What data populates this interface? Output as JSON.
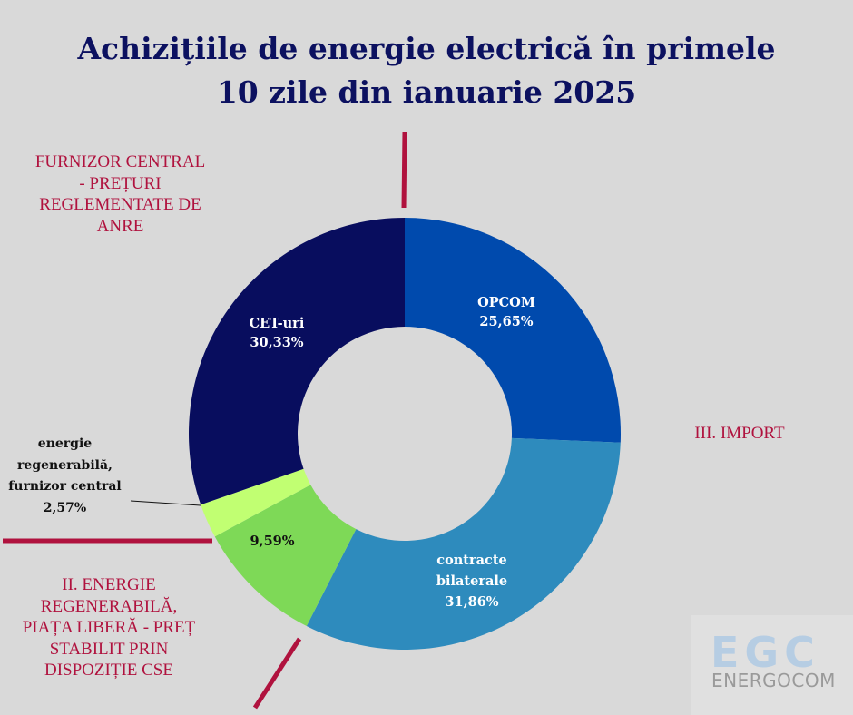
{
  "title": {
    "line1": "Achizițiile de energie electrică în primele",
    "line2": "10 zile din ianuarie 2025"
  },
  "categories_labels": {
    "furnizor_central": [
      "FURNIZOR CENTRAL",
      "- PREȚURI",
      "REGLEMENTATE DE",
      "ANRE"
    ],
    "energie_regenerabila": [
      "II. ENERGIE",
      "REGENERABILĂ,",
      "PIAȚA LIBERĂ - PREȚ",
      "STABILIT PRIN",
      "DISPOZIȚIE  CSE"
    ],
    "import": "III. IMPORT"
  },
  "slices": [
    {
      "name": "OPCOM",
      "value_label": "25,65%",
      "color": "#004aad"
    },
    {
      "name": "contracte bilaterale",
      "name_lines": [
        "contracte",
        "bilaterale"
      ],
      "value_label": "31,86%",
      "color": "#2e8bbd"
    },
    {
      "name": "",
      "value_label": "9,59%",
      "color": "#7ed957"
    },
    {
      "name": "energie regenerabilă, furnizor central",
      "name_lines": [
        "energie",
        "regenerabilă,",
        "furnizor central"
      ],
      "value_label": "2,57%",
      "color": "#c1ff72"
    },
    {
      "name": "CET-uri",
      "value_label": "30,33%",
      "color": "#080d5e"
    }
  ],
  "logo": {
    "mark": "EGC",
    "name": "ENERGOCOM"
  },
  "colors": {
    "background": "#d9d9d9",
    "title": "#0c1160",
    "accent_red": "#b0123e"
  },
  "chart_data": {
    "type": "pie",
    "subtype": "donut",
    "title": "Achizițiile de energie electrică în primele 10 zile din ianuarie 2025",
    "categories": [
      "OPCOM",
      "contracte bilaterale",
      "energie regenerabilă (piața liberă)",
      "energie regenerabilă, furnizor central",
      "CET-uri"
    ],
    "values": [
      25.65,
      31.86,
      9.59,
      2.57,
      30.33
    ],
    "unit": "%",
    "start_angle_deg": 0,
    "direction": "clockwise",
    "groups": [
      {
        "name": "FURNIZOR CENTRAL - PREȚURI REGLEMENTATE DE ANRE",
        "members": [
          "CET-uri",
          "energie regenerabilă, furnizor central"
        ]
      },
      {
        "name": "II. ENERGIE REGENERABILĂ, PIAȚA LIBERĂ - PREȚ STABILIT PRIN DISPOZIȚIE CSE",
        "members": [
          "energie regenerabilă (piața liberă)"
        ]
      },
      {
        "name": "III. IMPORT",
        "members": [
          "OPCOM",
          "contracte bilaterale"
        ]
      }
    ],
    "legend": "none"
  }
}
